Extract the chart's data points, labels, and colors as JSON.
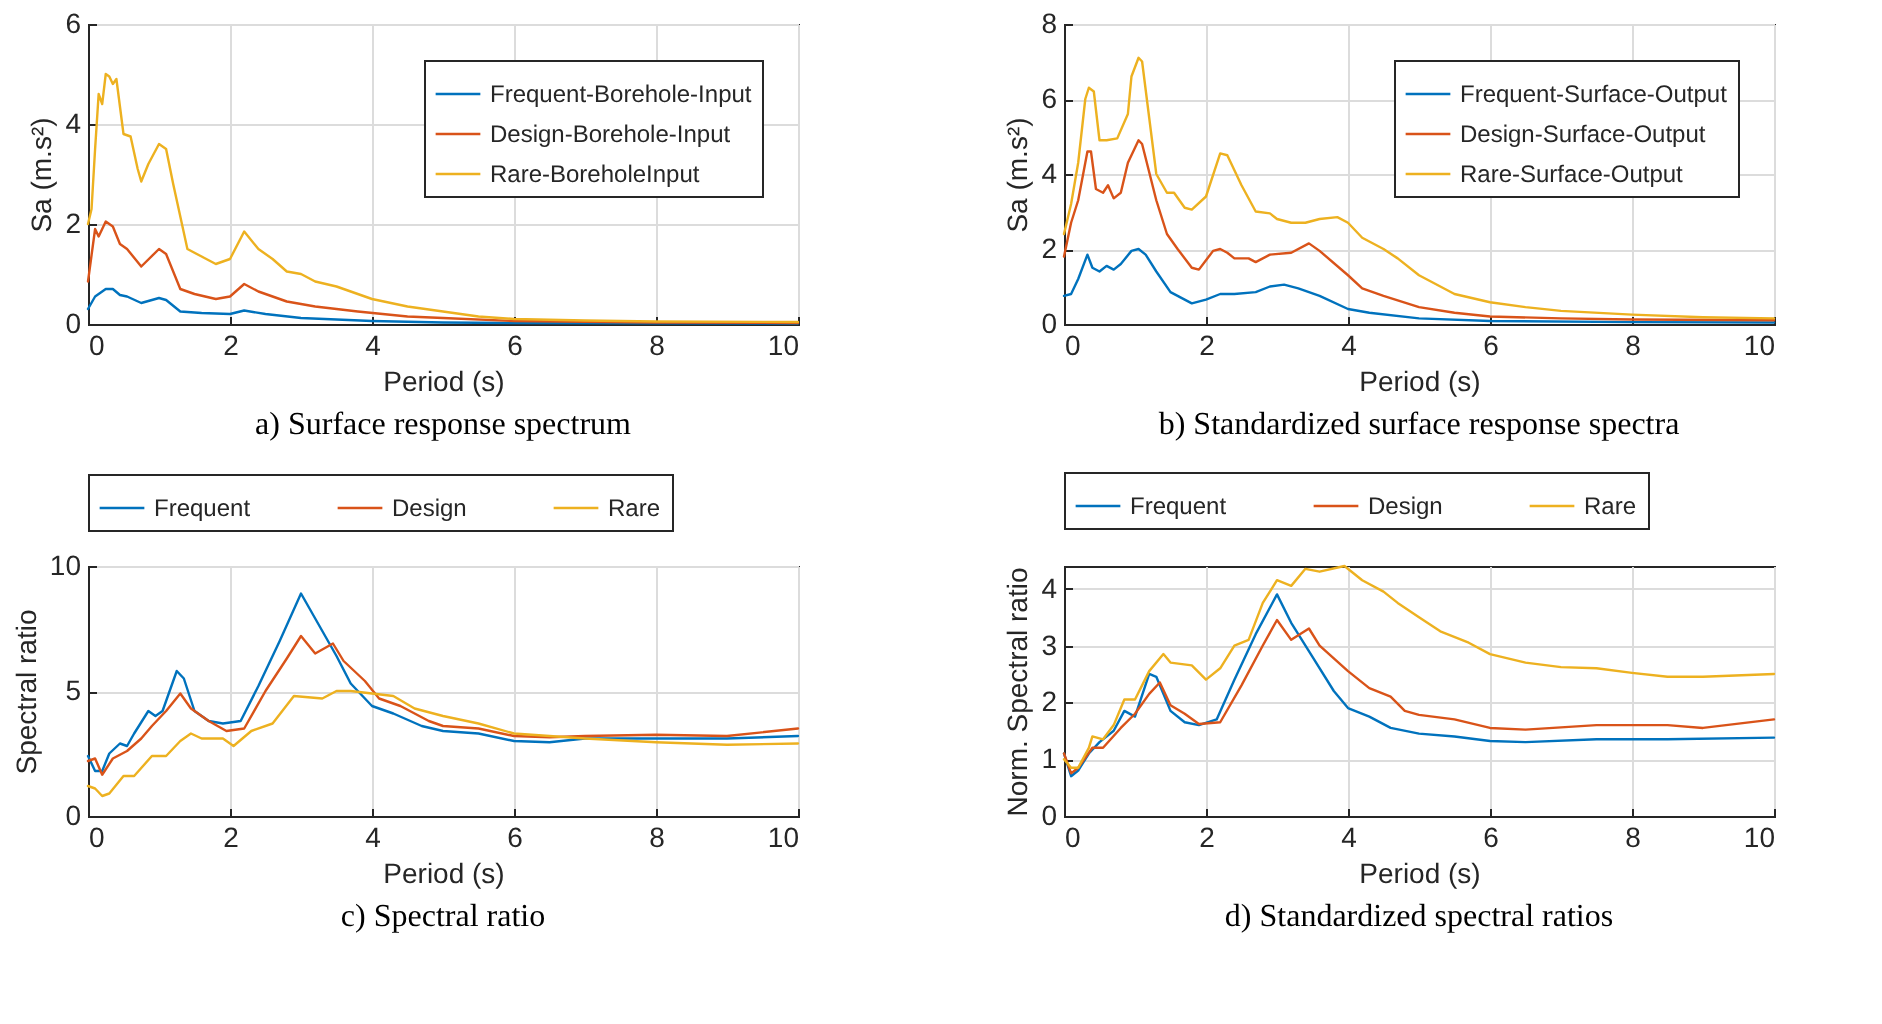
{
  "chart_data": [
    {
      "type": "line",
      "title": "a) Surface response spectrum",
      "xlabel": "Period (s)",
      "ylabel": "Sa (m.s²)",
      "xlim": [
        0,
        10
      ],
      "xticks": [
        0,
        2,
        4,
        6,
        8,
        10
      ],
      "ylim": [
        0,
        6
      ],
      "yticks": [
        0,
        2,
        4,
        6
      ],
      "grid": true,
      "legend": "top right",
      "series": [
        {
          "name": "Frequent-Borehole-Input",
          "color": "#0072bd",
          "x": [
            0,
            0.1,
            0.25,
            0.35,
            0.45,
            0.55,
            0.75,
            1.0,
            1.1,
            1.3,
            1.6,
            2.0,
            2.2,
            2.5,
            3,
            4,
            5,
            6,
            10
          ],
          "values": [
            0.3,
            0.55,
            0.7,
            0.7,
            0.58,
            0.55,
            0.42,
            0.52,
            0.48,
            0.25,
            0.22,
            0.2,
            0.27,
            0.2,
            0.12,
            0.06,
            0.03,
            0.02,
            0.01
          ]
        },
        {
          "name": "Design-Borehole-Input",
          "color": "#d95319",
          "x": [
            0,
            0.1,
            0.15,
            0.25,
            0.35,
            0.45,
            0.55,
            0.75,
            1.0,
            1.1,
            1.3,
            1.5,
            1.8,
            2.0,
            2.2,
            2.4,
            2.8,
            3.2,
            3.8,
            4.5,
            5,
            6,
            8,
            10
          ],
          "values": [
            0.85,
            1.9,
            1.75,
            2.05,
            1.95,
            1.6,
            1.5,
            1.15,
            1.5,
            1.4,
            0.7,
            0.6,
            0.5,
            0.55,
            0.8,
            0.65,
            0.45,
            0.35,
            0.25,
            0.15,
            0.12,
            0.06,
            0.03,
            0.02
          ]
        },
        {
          "name": "Rare-BoreholeInput",
          "color": "#edb120",
          "x": [
            0,
            0.05,
            0.1,
            0.15,
            0.2,
            0.25,
            0.3,
            0.35,
            0.4,
            0.5,
            0.6,
            0.7,
            0.75,
            0.85,
            1.0,
            1.1,
            1.2,
            1.4,
            1.6,
            1.8,
            2.0,
            2.2,
            2.4,
            2.6,
            2.8,
            3.0,
            3.2,
            3.5,
            4.0,
            4.5,
            5.0,
            5.5,
            6,
            7,
            8,
            10
          ],
          "values": [
            2.0,
            2.3,
            3.5,
            4.6,
            4.4,
            5.0,
            4.95,
            4.8,
            4.9,
            3.8,
            3.75,
            3.1,
            2.85,
            3.2,
            3.6,
            3.5,
            2.8,
            1.5,
            1.35,
            1.2,
            1.3,
            1.85,
            1.5,
            1.3,
            1.05,
            1.0,
            0.85,
            0.75,
            0.5,
            0.35,
            0.25,
            0.15,
            0.1,
            0.07,
            0.05,
            0.04
          ]
        }
      ]
    },
    {
      "type": "line",
      "title": "b) Standardized surface response spectra",
      "xlabel": "Period (s)",
      "ylabel": "Sa (m.s²)",
      "xlim": [
        0,
        10
      ],
      "xticks": [
        0,
        2,
        4,
        6,
        8,
        10
      ],
      "ylim": [
        0,
        8
      ],
      "yticks": [
        0,
        2,
        4,
        6,
        8
      ],
      "grid": true,
      "legend": "top right",
      "series": [
        {
          "name": "Frequent-Surface-Output",
          "color": "#0072bd",
          "x": [
            0,
            0.1,
            0.2,
            0.33,
            0.4,
            0.5,
            0.6,
            0.7,
            0.8,
            0.95,
            1.05,
            1.15,
            1.3,
            1.5,
            1.7,
            1.8,
            2.0,
            2.2,
            2.4,
            2.7,
            2.9,
            3.1,
            3.3,
            3.6,
            4.0,
            4.3,
            5,
            6,
            8,
            10
          ],
          "values": [
            0.75,
            0.8,
            1.2,
            1.85,
            1.5,
            1.4,
            1.55,
            1.45,
            1.6,
            1.95,
            2.0,
            1.85,
            1.4,
            0.85,
            0.65,
            0.55,
            0.65,
            0.8,
            0.8,
            0.85,
            1.0,
            1.05,
            0.95,
            0.75,
            0.4,
            0.3,
            0.15,
            0.08,
            0.05,
            0.04
          ]
        },
        {
          "name": "Design-Surface-Output",
          "color": "#d95319",
          "x": [
            0,
            0.1,
            0.2,
            0.33,
            0.38,
            0.45,
            0.55,
            0.62,
            0.7,
            0.8,
            0.9,
            1.05,
            1.1,
            1.3,
            1.45,
            1.6,
            1.8,
            1.9,
            2.0,
            2.1,
            2.2,
            2.3,
            2.4,
            2.6,
            2.7,
            2.9,
            3.2,
            3.45,
            3.6,
            4.0,
            4.2,
            4.5,
            5,
            5.5,
            6,
            7,
            8,
            10
          ],
          "values": [
            1.8,
            2.7,
            3.3,
            4.6,
            4.6,
            3.6,
            3.5,
            3.7,
            3.35,
            3.5,
            4.3,
            4.9,
            4.8,
            3.3,
            2.4,
            2.0,
            1.5,
            1.45,
            1.7,
            1.95,
            2.0,
            1.9,
            1.75,
            1.75,
            1.65,
            1.85,
            1.9,
            2.15,
            1.95,
            1.3,
            0.95,
            0.75,
            0.45,
            0.3,
            0.2,
            0.15,
            0.12,
            0.1
          ]
        },
        {
          "name": "Rare-Surface-Output",
          "color": "#edb120",
          "x": [
            0,
            0.1,
            0.2,
            0.3,
            0.35,
            0.42,
            0.5,
            0.6,
            0.75,
            0.9,
            0.95,
            1.05,
            1.1,
            1.2,
            1.3,
            1.45,
            1.55,
            1.7,
            1.8,
            2.0,
            2.2,
            2.3,
            2.5,
            2.7,
            2.9,
            3.0,
            3.2,
            3.4,
            3.6,
            3.85,
            4.0,
            4.2,
            4.5,
            4.7,
            5,
            5.5,
            6,
            6.5,
            7,
            8,
            9,
            10
          ],
          "values": [
            2.4,
            3.2,
            4.3,
            6.0,
            6.3,
            6.2,
            4.9,
            4.9,
            4.95,
            5.6,
            6.6,
            7.1,
            7.0,
            5.5,
            4.0,
            3.5,
            3.5,
            3.1,
            3.05,
            3.4,
            4.55,
            4.5,
            3.7,
            3.0,
            2.95,
            2.8,
            2.7,
            2.7,
            2.8,
            2.85,
            2.7,
            2.3,
            2.0,
            1.75,
            1.3,
            0.8,
            0.58,
            0.45,
            0.35,
            0.25,
            0.18,
            0.15
          ]
        }
      ]
    },
    {
      "type": "line",
      "title": "c) Spectral ratio",
      "xlabel": "Period (s)",
      "ylabel": "Spectral ratio",
      "xlim": [
        0,
        10
      ],
      "xticks": [
        0,
        2,
        4,
        6,
        8,
        10
      ],
      "ylim": [
        0,
        10
      ],
      "yticks": [
        0,
        5,
        10
      ],
      "grid": true,
      "legend": "top",
      "series": [
        {
          "name": "Frequent",
          "color": "#0072bd",
          "x": [
            0,
            0.1,
            0.2,
            0.3,
            0.45,
            0.55,
            0.65,
            0.85,
            0.95,
            1.05,
            1.25,
            1.35,
            1.5,
            1.7,
            1.9,
            2.15,
            2.4,
            2.7,
            3.0,
            3.2,
            3.5,
            3.7,
            4.0,
            4.3,
            4.7,
            5.0,
            5.5,
            6.0,
            6.5,
            7,
            8,
            9,
            10
          ],
          "values": [
            2.4,
            1.8,
            1.8,
            2.5,
            2.9,
            2.8,
            3.3,
            4.2,
            4.0,
            4.2,
            5.8,
            5.5,
            4.2,
            3.8,
            3.7,
            3.8,
            5.2,
            7.0,
            8.9,
            7.9,
            6.4,
            5.3,
            4.4,
            4.1,
            3.6,
            3.4,
            3.3,
            3.0,
            2.95,
            3.1,
            3.1,
            3.1,
            3.2
          ]
        },
        {
          "name": "Design",
          "color": "#d95319",
          "x": [
            0,
            0.1,
            0.2,
            0.35,
            0.55,
            0.75,
            0.9,
            1.1,
            1.3,
            1.45,
            1.7,
            1.95,
            2.2,
            2.5,
            2.8,
            3.0,
            3.2,
            3.45,
            3.6,
            3.9,
            4.1,
            4.4,
            4.8,
            5.0,
            5.5,
            6.0,
            6.5,
            7,
            8,
            9,
            10
          ],
          "values": [
            2.2,
            2.3,
            1.65,
            2.3,
            2.6,
            3.1,
            3.6,
            4.2,
            4.9,
            4.3,
            3.8,
            3.4,
            3.5,
            5.0,
            6.3,
            7.2,
            6.5,
            6.9,
            6.2,
            5.4,
            4.7,
            4.4,
            3.8,
            3.6,
            3.5,
            3.2,
            3.15,
            3.2,
            3.25,
            3.2,
            3.5
          ]
        },
        {
          "name": "Rare",
          "color": "#edb120",
          "x": [
            0,
            0.1,
            0.2,
            0.3,
            0.5,
            0.65,
            0.9,
            1.1,
            1.3,
            1.45,
            1.6,
            1.9,
            2.05,
            2.3,
            2.6,
            2.9,
            3.3,
            3.5,
            3.7,
            4.0,
            4.3,
            4.6,
            5.0,
            5.5,
            6.0,
            6.5,
            7,
            8,
            9,
            10
          ],
          "values": [
            1.2,
            1.1,
            0.8,
            0.9,
            1.6,
            1.6,
            2.4,
            2.4,
            3.0,
            3.3,
            3.1,
            3.1,
            2.8,
            3.4,
            3.7,
            4.8,
            4.7,
            5.0,
            5.0,
            4.9,
            4.8,
            4.3,
            4.0,
            3.7,
            3.3,
            3.2,
            3.1,
            2.95,
            2.85,
            2.9
          ]
        }
      ]
    },
    {
      "type": "line",
      "title": "d) Standardized spectral ratios",
      "xlabel": "Period (s)",
      "ylabel": "Norm. Spectral ratio",
      "xlim": [
        0,
        10
      ],
      "xticks": [
        0,
        2,
        4,
        6,
        8,
        10
      ],
      "ylim": [
        0,
        4.4
      ],
      "yticks": [
        0,
        1,
        2,
        3,
        4
      ],
      "grid": true,
      "legend": "top",
      "series": [
        {
          "name": "Frequent",
          "color": "#0072bd",
          "x": [
            0,
            0.1,
            0.2,
            0.35,
            0.5,
            0.7,
            0.85,
            1.0,
            1.2,
            1.3,
            1.5,
            1.7,
            1.9,
            2.15,
            2.4,
            2.7,
            3.0,
            3.2,
            3.5,
            3.8,
            4.0,
            4.3,
            4.6,
            5.0,
            5.5,
            6.0,
            6.5,
            7.5,
            8.5,
            10
          ],
          "values": [
            1.1,
            0.7,
            0.8,
            1.1,
            1.3,
            1.5,
            1.85,
            1.75,
            2.5,
            2.45,
            1.85,
            1.65,
            1.6,
            1.7,
            2.4,
            3.2,
            3.9,
            3.4,
            2.8,
            2.2,
            1.9,
            1.75,
            1.55,
            1.45,
            1.4,
            1.32,
            1.3,
            1.35,
            1.35,
            1.38
          ]
        },
        {
          "name": "Design",
          "color": "#d95319",
          "x": [
            0,
            0.1,
            0.2,
            0.4,
            0.55,
            0.8,
            1.0,
            1.2,
            1.35,
            1.5,
            1.7,
            1.9,
            2.2,
            2.5,
            2.8,
            3.0,
            3.2,
            3.45,
            3.6,
            4.0,
            4.3,
            4.6,
            4.8,
            5.0,
            5.5,
            6.0,
            6.5,
            7.5,
            8.5,
            9,
            10
          ],
          "values": [
            1.1,
            0.75,
            0.85,
            1.2,
            1.2,
            1.55,
            1.8,
            2.15,
            2.35,
            1.95,
            1.8,
            1.62,
            1.65,
            2.3,
            3.0,
            3.45,
            3.1,
            3.3,
            3.0,
            2.55,
            2.25,
            2.1,
            1.85,
            1.78,
            1.7,
            1.55,
            1.52,
            1.6,
            1.6,
            1.55,
            1.7
          ]
        },
        {
          "name": "Rare",
          "color": "#edb120",
          "x": [
            0,
            0.1,
            0.2,
            0.35,
            0.4,
            0.55,
            0.7,
            0.85,
            1.0,
            1.2,
            1.4,
            1.5,
            1.8,
            2.0,
            2.2,
            2.4,
            2.6,
            2.8,
            3.0,
            3.2,
            3.4,
            3.6,
            3.95,
            4.2,
            4.5,
            4.7,
            5.0,
            5.3,
            5.7,
            6.0,
            6.5,
            7.0,
            7.5,
            8.0,
            8.5,
            9,
            10
          ],
          "values": [
            1.0,
            0.85,
            0.85,
            1.2,
            1.4,
            1.35,
            1.6,
            2.05,
            2.05,
            2.55,
            2.85,
            2.7,
            2.65,
            2.4,
            2.6,
            3.0,
            3.1,
            3.75,
            4.15,
            4.05,
            4.35,
            4.3,
            4.4,
            4.15,
            3.95,
            3.75,
            3.5,
            3.25,
            3.05,
            2.85,
            2.7,
            2.62,
            2.6,
            2.52,
            2.45,
            2.45,
            2.5
          ]
        }
      ]
    }
  ]
}
